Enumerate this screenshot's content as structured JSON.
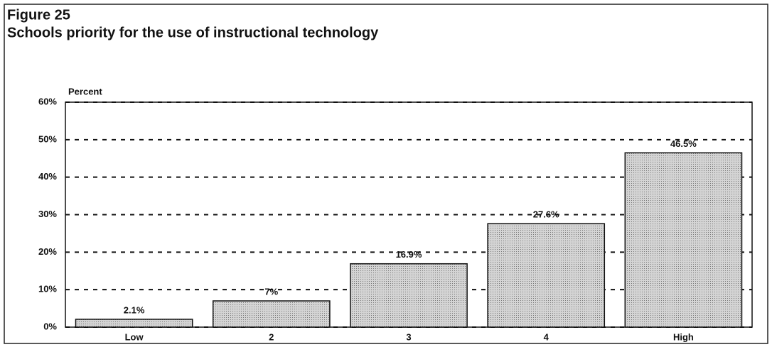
{
  "chart_data": {
    "type": "bar",
    "title": "Figure 25",
    "subtitle": "Schools priority for the use of instructional technology",
    "y_label": "Percent",
    "categories": [
      "Low",
      "2",
      "3",
      "4",
      "High"
    ],
    "values": [
      2.1,
      7,
      16.9,
      27.6,
      46.5
    ],
    "value_labels": [
      "2.1%",
      "7%",
      "16.9%",
      "27.6%",
      "46.5%"
    ],
    "color": "#bdbdbd",
    "ylim": [
      0,
      60
    ],
    "yticks": [
      {
        "value": 0,
        "label": "0%"
      },
      {
        "value": 10,
        "label": "10%"
      },
      {
        "value": 20,
        "label": "20%"
      },
      {
        "value": 30,
        "label": "30%"
      },
      {
        "value": 40,
        "label": "40%"
      },
      {
        "value": 50,
        "label": "50%"
      },
      {
        "value": 60,
        "label": "60%"
      }
    ],
    "grid": true
  }
}
